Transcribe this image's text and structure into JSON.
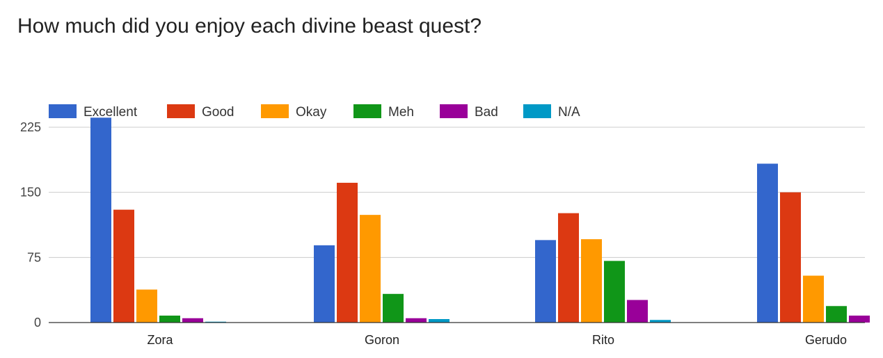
{
  "chart_data": {
    "type": "bar",
    "title": "How much did you enjoy each divine beast quest?",
    "categories": [
      "Zora",
      "Goron",
      "Rito",
      "Gerudo"
    ],
    "series": [
      {
        "name": "Excellent",
        "color": "#3366cc",
        "values": [
          236,
          89,
          95,
          183
        ]
      },
      {
        "name": "Good",
        "color": "#dc3912",
        "values": [
          130,
          161,
          126,
          150
        ]
      },
      {
        "name": "Okay",
        "color": "#ff9900",
        "values": [
          38,
          124,
          96,
          54
        ]
      },
      {
        "name": "Meh",
        "color": "#109618",
        "values": [
          8,
          33,
          71,
          19
        ]
      },
      {
        "name": "Bad",
        "color": "#990099",
        "values": [
          5,
          5,
          26,
          8
        ]
      },
      {
        "name": "N/A",
        "color": "#0099c6",
        "values": [
          1,
          4,
          3,
          0
        ]
      }
    ],
    "yticks": [
      0,
      75,
      150,
      225
    ],
    "ylim": [
      0,
      240
    ],
    "legend_position": "top-left",
    "grid": true
  }
}
